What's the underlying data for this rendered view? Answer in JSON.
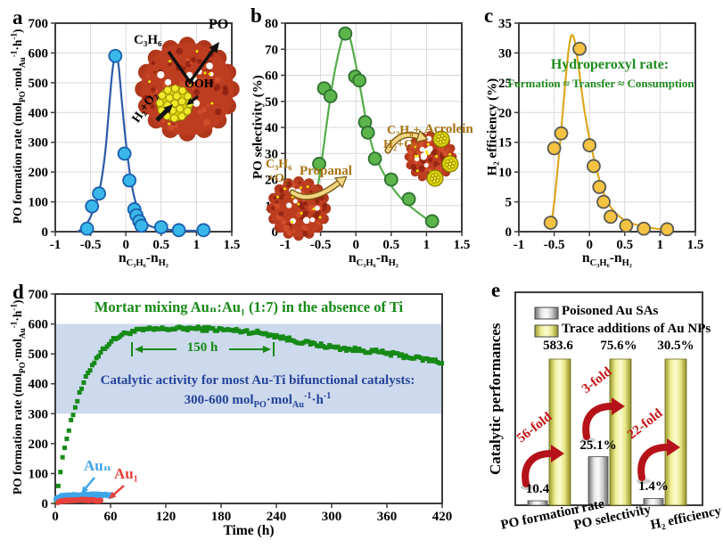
{
  "panels": {
    "a": {
      "label": "a",
      "xlabel": "n_{C₃H₆}-n_{H₂}",
      "ylabel": "PO formation rate (mol_{PO}·mol_{Au}^{-1}·h^{-1})",
      "inset": {
        "c3h6": "C₃H₆",
        "po": "PO",
        "ooh": "OOH",
        "h2o2": "H₂+O₂"
      }
    },
    "b": {
      "label": "b",
      "xlabel": "n_{C₃H₆}-n_{H₂}",
      "ylabel": "PO selectivity (%)",
      "annotations": {
        "reactant1a": "C₃H₆",
        "reactant1b": "+O₂",
        "product1": "Propanal",
        "reactant2a": "C₃H₆+",
        "reactant2b": "H₂+O₂",
        "product2": "Acrolein"
      }
    },
    "c": {
      "label": "c",
      "xlabel": "n_{C₃H₆}-n_{H₂}",
      "ylabel": "H₂ efficiency (%)",
      "annotations": {
        "line1": "Hydroperoxyl rate:",
        "line2": "Formation ≈ Transfer ≈ Consumption"
      }
    },
    "d": {
      "label": "d",
      "xlabel": "Time (h)",
      "ylabel": "PO formation rate (mol_{PO}·mol_{Au}^{-1}·h^{-1})",
      "title": "Mortar mixing Auₙ:Au₁ (1:7) in the absence of Ti",
      "band_line1": "Catalytic activity for most Au-Ti bifunctional catalysts:",
      "band_line2": "300-600 mol_{PO}·mol_{Au}^{-1}·h^{-1}",
      "duration_label": "150 h",
      "series1_label": "Auₙ",
      "series2_label": "Au₁"
    },
    "e": {
      "label": "e",
      "ylabel": "Catalytic performances",
      "legend": [
        "Poisoned Au SAs",
        "Trace additions of Au NPs"
      ],
      "categories": [
        "PO formation rate",
        "PO selectivity",
        "H₂ efficiency"
      ],
      "gray_values": [
        "10.4",
        "25.1%",
        "1.4%"
      ],
      "yellow_values": [
        "583.6",
        "75.6%",
        "30.5%"
      ],
      "fold_labels": [
        "56-fold",
        "3-fold",
        "22-fold"
      ]
    }
  },
  "chart_data": [
    {
      "id": "a",
      "type": "scatter",
      "xlabel": "n_C3H6 - n_H2",
      "ylabel": "PO formation rate (mol_PO·mol_Au^-1·h^-1)",
      "xlim": [
        -1,
        1.5
      ],
      "ylim": [
        0,
        700
      ],
      "xticks": [
        -1,
        -0.5,
        0,
        0.5,
        1,
        1.5
      ],
      "yticks": [
        0,
        100,
        200,
        300,
        400,
        500,
        600,
        700
      ],
      "grid": true,
      "marker_color": "#3ab7e9",
      "marker_edge": "#1a5fae",
      "line_color": "#2c5ba8",
      "points_x": [
        -0.55,
        -0.48,
        -0.38,
        -0.15,
        -0.02,
        0.05,
        0.12,
        0.15,
        0.19,
        0.22,
        0.5,
        0.75,
        1.1
      ],
      "points_y": [
        10,
        85,
        128,
        590,
        262,
        172,
        75,
        55,
        35,
        20,
        15,
        5,
        5
      ],
      "fit_x": [
        -0.68,
        -0.6,
        -0.52,
        -0.45,
        -0.38,
        -0.3,
        -0.25,
        -0.2,
        -0.16,
        -0.13,
        -0.1,
        -0.05,
        0,
        0.06,
        0.12,
        0.2,
        0.3,
        0.4,
        0.55,
        0.75,
        0.95,
        1.15
      ],
      "fit_y": [
        0,
        15,
        40,
        80,
        130,
        250,
        380,
        520,
        585,
        590,
        550,
        420,
        300,
        190,
        115,
        55,
        25,
        14,
        8,
        4,
        3,
        2
      ]
    },
    {
      "id": "b",
      "type": "scatter",
      "xlabel": "n_C3H6 - n_H2",
      "ylabel": "PO selectivity (%)",
      "xlim": [
        -1,
        1.5
      ],
      "ylim": [
        0,
        80
      ],
      "xticks": [
        -1,
        -0.5,
        0,
        0.5,
        1,
        1.5
      ],
      "yticks": [
        0,
        10,
        20,
        30,
        40,
        50,
        60,
        70,
        80
      ],
      "grid": true,
      "marker_color": "#5cb54b",
      "marker_edge": "#2d7031",
      "line_color": "#54ad49",
      "points_x": [
        -0.52,
        -0.45,
        -0.36,
        -0.15,
        -0.01,
        0.05,
        0.13,
        0.17,
        0.27,
        0.5,
        0.75,
        1.08
      ],
      "points_y": [
        26,
        55,
        52,
        76,
        59.5,
        58,
        42,
        38,
        28,
        20,
        12.5,
        4
      ],
      "fit_x": [
        -0.62,
        -0.55,
        -0.5,
        -0.45,
        -0.4,
        -0.33,
        -0.25,
        -0.18,
        -0.13,
        -0.08,
        0,
        0.07,
        0.15,
        0.25,
        0.4,
        0.6,
        0.8,
        1.0,
        1.12
      ],
      "fit_y": [
        8,
        16,
        24,
        34,
        44,
        57,
        68,
        75,
        76.5,
        74,
        64,
        54,
        42,
        31,
        22,
        14,
        9,
        5,
        3.5
      ]
    },
    {
      "id": "c",
      "type": "scatter",
      "xlabel": "n_C3H6 - n_H2",
      "ylabel": "H2 efficiency (%)",
      "xlim": [
        -1,
        1.5
      ],
      "ylim": [
        0,
        35
      ],
      "xticks": [
        -1,
        -0.5,
        0,
        0.5,
        1,
        1.5
      ],
      "yticks": [
        0,
        5,
        10,
        15,
        20,
        25,
        30,
        35
      ],
      "grid": true,
      "marker_color": "#f5c342",
      "marker_edge": "#5a5a52",
      "line_color": "#dca81e",
      "points_x": [
        -0.55,
        -0.5,
        -0.4,
        -0.14,
        0,
        0.06,
        0.14,
        0.2,
        0.3,
        0.52,
        0.77,
        1.1
      ],
      "points_y": [
        1.5,
        14,
        16.5,
        30.7,
        14.5,
        11,
        7.5,
        5,
        2.5,
        1,
        0.5,
        0.4
      ],
      "fit_x": [
        -0.56,
        -0.52,
        -0.48,
        -0.44,
        -0.4,
        -0.35,
        -0.3,
        -0.26,
        -0.22,
        -0.18,
        -0.13,
        -0.08,
        -0.03,
        0.03,
        0.1,
        0.18,
        0.28,
        0.4,
        0.55,
        0.75,
        0.95,
        1.12
      ],
      "fit_y": [
        0.3,
        3,
        7,
        12,
        17,
        24,
        30,
        32.8,
        32.5,
        30,
        25.5,
        21,
        17.5,
        14,
        10.5,
        7.2,
        4.5,
        2.8,
        1.6,
        0.9,
        0.5,
        0.3
      ]
    },
    {
      "id": "d",
      "type": "stability",
      "xlabel": "Time (h)",
      "ylabel": "PO formation rate (mol_PO·mol_Au^-1·h^-1)",
      "xlim": [
        0,
        420
      ],
      "ylim": [
        0,
        700
      ],
      "xticks": [
        0,
        60,
        120,
        180,
        240,
        300,
        360,
        420
      ],
      "yticks": [
        0,
        100,
        200,
        300,
        400,
        500,
        600,
        700
      ],
      "grid": false,
      "band": {
        "from": 300,
        "to": 600,
        "color": "#cdd9ed"
      },
      "series": [
        {
          "name": "Mortar mixing Aun:Au1 (1:7) in the absence of Ti",
          "color": "#168a16",
          "marker": "square",
          "size": 5,
          "step": 2.3,
          "jitter": 6.5,
          "x": [
            1,
            3,
            5,
            8,
            11,
            14,
            17,
            20,
            24,
            28,
            32,
            36,
            40,
            45,
            50,
            55,
            60,
            66,
            72,
            80,
            90,
            100,
            115,
            130,
            145,
            160,
            175,
            190,
            205,
            220,
            232,
            242,
            252,
            262,
            272,
            282,
            292,
            302,
            312,
            322,
            332,
            342,
            352,
            362,
            372,
            382,
            392,
            402,
            412,
            420
          ],
          "y": [
            15,
            55,
            95,
            150,
            200,
            240,
            275,
            305,
            345,
            380,
            410,
            438,
            462,
            488,
            508,
            525,
            540,
            553,
            563,
            572,
            578,
            581,
            583,
            584,
            585,
            584,
            582,
            579,
            576,
            571,
            566,
            558,
            550,
            543,
            537,
            532,
            527,
            522,
            518,
            515,
            512,
            509,
            506,
            501,
            496,
            491,
            486,
            481,
            476,
            472
          ]
        },
        {
          "name": "Aun",
          "color": "#3fa5e9",
          "marker": "circle",
          "size": 3.2,
          "step": 0.8,
          "jitter": 2.4,
          "x": [
            1,
            6,
            12,
            18,
            24,
            30,
            36,
            42,
            48,
            54,
            60,
            62
          ],
          "y": [
            17,
            23,
            26,
            27,
            28,
            29,
            29,
            29,
            28,
            28,
            27,
            26
          ]
        },
        {
          "name": "Au1",
          "color": "#e8413c",
          "marker": "circle",
          "size": 3,
          "step": 0.8,
          "jitter": 2.2,
          "x": [
            3,
            8,
            14,
            20,
            26,
            32,
            38,
            44,
            48,
            50
          ],
          "y": [
            5,
            8,
            10,
            11,
            12,
            12,
            11,
            10,
            9,
            8
          ]
        }
      ]
    },
    {
      "id": "e",
      "type": "bar",
      "ylabel": "Catalytic performances",
      "categories": [
        "PO formation rate",
        "PO selectivity",
        "H₂ efficiency"
      ],
      "series": [
        {
          "name": "Poisoned Au SAs",
          "color": "gray",
          "values": [
            10.4,
            25.1,
            1.4
          ],
          "value_labels": [
            "10.4",
            "25.1%",
            "1.4%"
          ]
        },
        {
          "name": "Trace additions of Au NPs",
          "color": "yellow",
          "values": [
            583.6,
            75.6,
            30.5
          ],
          "value_labels": [
            "583.6",
            "75.6%",
            "30.5%"
          ]
        }
      ],
      "fold_increase": [
        "56-fold",
        "3-fold",
        "22-fold"
      ],
      "bars_equal_height_per_category": true,
      "legend_position": "top-left"
    }
  ]
}
